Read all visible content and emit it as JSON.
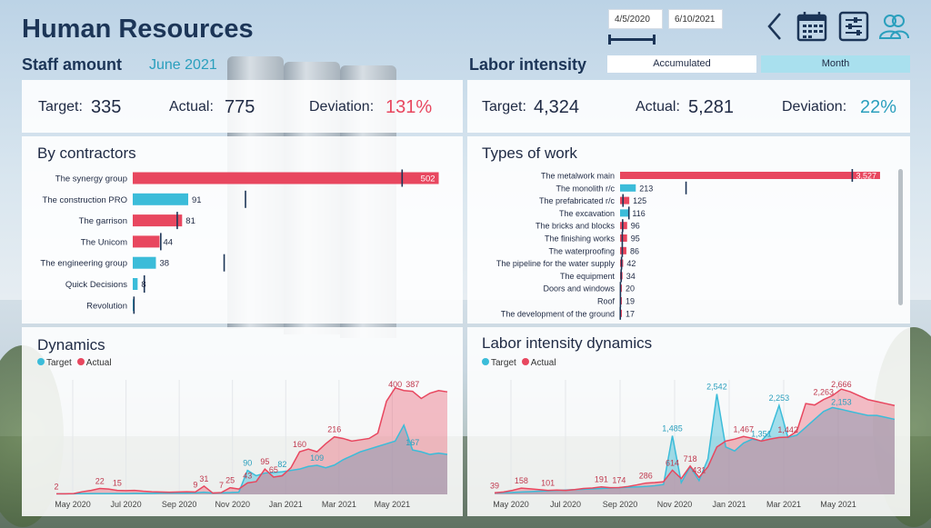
{
  "header": {
    "title": "Human Resources",
    "date_start": "4/5/2020",
    "date_end": "6/10/2021",
    "toggle_accumulated": "Accumulated",
    "toggle_month": "Month"
  },
  "staff": {
    "heading": "Staff amount",
    "period": "June 2021",
    "target_label": "Target:",
    "target_value": "335",
    "actual_label": "Actual:",
    "actual_value": "775",
    "deviation_label": "Deviation:",
    "deviation_value": "131%"
  },
  "labor": {
    "heading": "Labor intensity",
    "target_label": "Target:",
    "target_value": "4,324",
    "actual_label": "Actual:",
    "actual_value": "5,281",
    "deviation_label": "Deviation:",
    "deviation_value": "22%"
  },
  "colors": {
    "actual": "#e8475f",
    "target": "#3bbcd9",
    "navy": "#1c3557",
    "teal": "#2a9fbd"
  },
  "chart_data": [
    {
      "type": "bar",
      "title": "By contractors",
      "categories": [
        "The synergy group",
        "The construction PRO",
        "The garrison",
        "The Unicom",
        "The engineering group",
        "Quick Decisions",
        "Revolution"
      ],
      "values": [
        502,
        91,
        81,
        44,
        38,
        8,
        0
      ],
      "labels": [
        "502",
        "91",
        "81",
        "44",
        "38",
        "8",
        ""
      ],
      "bar_colors": [
        "#e8475f",
        "#3bbcd9",
        "#e8475f",
        "#e8475f",
        "#3bbcd9",
        "#3bbcd9",
        "#3bbcd9"
      ],
      "targets": [
        442,
        185,
        73,
        46,
        150,
        19,
        2
      ],
      "xlim": [
        0,
        540
      ]
    },
    {
      "type": "bar",
      "title": "Types of work",
      "categories": [
        "The metalwork main",
        "The monolith r/c",
        "The prefabricated r/c",
        "The excavation",
        "The bricks and blocks",
        "The finishing works",
        "The waterproofing",
        "The pipeline for the water supply",
        "The equipment",
        "Doors and windows",
        "Roof",
        "The development of the ground"
      ],
      "values": [
        3527,
        213,
        125,
        116,
        96,
        95,
        86,
        42,
        34,
        20,
        19,
        17
      ],
      "labels": [
        "3,527",
        "213",
        "125",
        "116",
        "96",
        "95",
        "86",
        "42",
        "34",
        "20",
        "19",
        "17"
      ],
      "bar_colors": [
        "#e8475f",
        "#3bbcd9",
        "#e8475f",
        "#3bbcd9",
        "#e8475f",
        "#e8475f",
        "#e8475f",
        "#e8475f",
        "#e8475f",
        "#e8475f",
        "#e8475f",
        "#e8475f"
      ],
      "targets": [
        3150,
        895,
        40,
        120,
        35,
        30,
        30,
        20,
        15,
        5,
        5,
        3
      ],
      "xlim": [
        0,
        3700
      ]
    },
    {
      "type": "area",
      "title": "Dynamics",
      "legend": [
        "Target",
        "Actual"
      ],
      "x_ticks": [
        "May 2020",
        "Jul 2020",
        "Sep 2020",
        "Nov 2020",
        "Jan 2021",
        "Mar 2021",
        "May 2021"
      ],
      "x": [
        0,
        1,
        2,
        3,
        4,
        5,
        6,
        7,
        8,
        9,
        10,
        11,
        12,
        13,
        14,
        15,
        16,
        17,
        18,
        19,
        20,
        21,
        22,
        23,
        24,
        25,
        26,
        27,
        28,
        29,
        30,
        31,
        32,
        33,
        34,
        35,
        36,
        37,
        38,
        39,
        40,
        41,
        42,
        43,
        44,
        45
      ],
      "series": [
        {
          "name": "Actual",
          "values": [
            2,
            2,
            3,
            10,
            15,
            22,
            20,
            15,
            14,
            15,
            12,
            10,
            9,
            8,
            9,
            10,
            9,
            31,
            5,
            7,
            25,
            20,
            43,
            48,
            95,
            65,
            70,
            100,
            160,
            170,
            160,
            190,
            216,
            210,
            200,
            205,
            210,
            230,
            350,
            400,
            390,
            387,
            360,
            380,
            390,
            385
          ]
        },
        {
          "name": "Target",
          "values": [
            2,
            2,
            2,
            3,
            3,
            3,
            3,
            3,
            3,
            4,
            4,
            4,
            5,
            5,
            5,
            5,
            6,
            8,
            5,
            6,
            7,
            8,
            90,
            70,
            80,
            82,
            85,
            90,
            95,
            105,
            109,
            100,
            110,
            130,
            145,
            160,
            170,
            180,
            190,
            200,
            260,
            167,
            160,
            150,
            155,
            150
          ]
        }
      ],
      "labels": [
        "2",
        "22",
        "15",
        "9",
        "31",
        "7",
        "25",
        "90",
        "43",
        "95",
        "65",
        "82",
        "160",
        "109",
        "216",
        "400",
        "387",
        "167"
      ],
      "ylim": [
        0,
        430
      ]
    },
    {
      "type": "area",
      "title": "Labor intensity dynamics",
      "legend": [
        "Target",
        "Actual"
      ],
      "x_ticks": [
        "May 2020",
        "Jul 2020",
        "Sep 2020",
        "Nov 2020",
        "Jan 2021",
        "Mar 2021",
        "May 2021"
      ],
      "x": [
        0,
        1,
        2,
        3,
        4,
        5,
        6,
        7,
        8,
        9,
        10,
        11,
        12,
        13,
        14,
        15,
        16,
        17,
        18,
        19,
        20,
        21,
        22,
        23,
        24,
        25,
        26,
        27,
        28,
        29,
        30,
        31,
        32,
        33,
        34,
        35,
        36,
        37,
        38,
        39,
        40,
        41,
        42,
        43,
        44,
        45
      ],
      "series": [
        {
          "name": "Actual",
          "values": [
            39,
            60,
            100,
            158,
            140,
            120,
            101,
            110,
            100,
            120,
            150,
            160,
            191,
            170,
            174,
            200,
            240,
            286,
            300,
            320,
            614,
            400,
            718,
            431,
            700,
            1200,
            1350,
            1400,
            1467,
            1420,
            1351,
            1400,
            1442,
            1450,
            1600,
            2300,
            2263,
            2400,
            2500,
            2666,
            2600,
            2500,
            2400,
            2350,
            2300,
            2250
          ]
        },
        {
          "name": "Target",
          "values": [
            39,
            45,
            50,
            60,
            70,
            80,
            90,
            100,
            110,
            120,
            130,
            140,
            150,
            160,
            170,
            180,
            190,
            200,
            220,
            250,
            1485,
            300,
            700,
            350,
            900,
            2542,
            1200,
            1100,
            1300,
            1400,
            1351,
            1600,
            2253,
            1442,
            1500,
            1700,
            1900,
            2100,
            2200,
            2153,
            2100,
            2050,
            2000,
            2000,
            1950,
            1900
          ]
        }
      ],
      "labels": [
        "39",
        "158",
        "101",
        "191",
        "174",
        "286",
        "614",
        "1,485",
        "718",
        "431",
        "2,542",
        "1,467",
        "1,351",
        "2,253",
        "1,442",
        "2,666",
        "2,263",
        "2,153"
      ],
      "ylim": [
        0,
        2900
      ]
    }
  ]
}
